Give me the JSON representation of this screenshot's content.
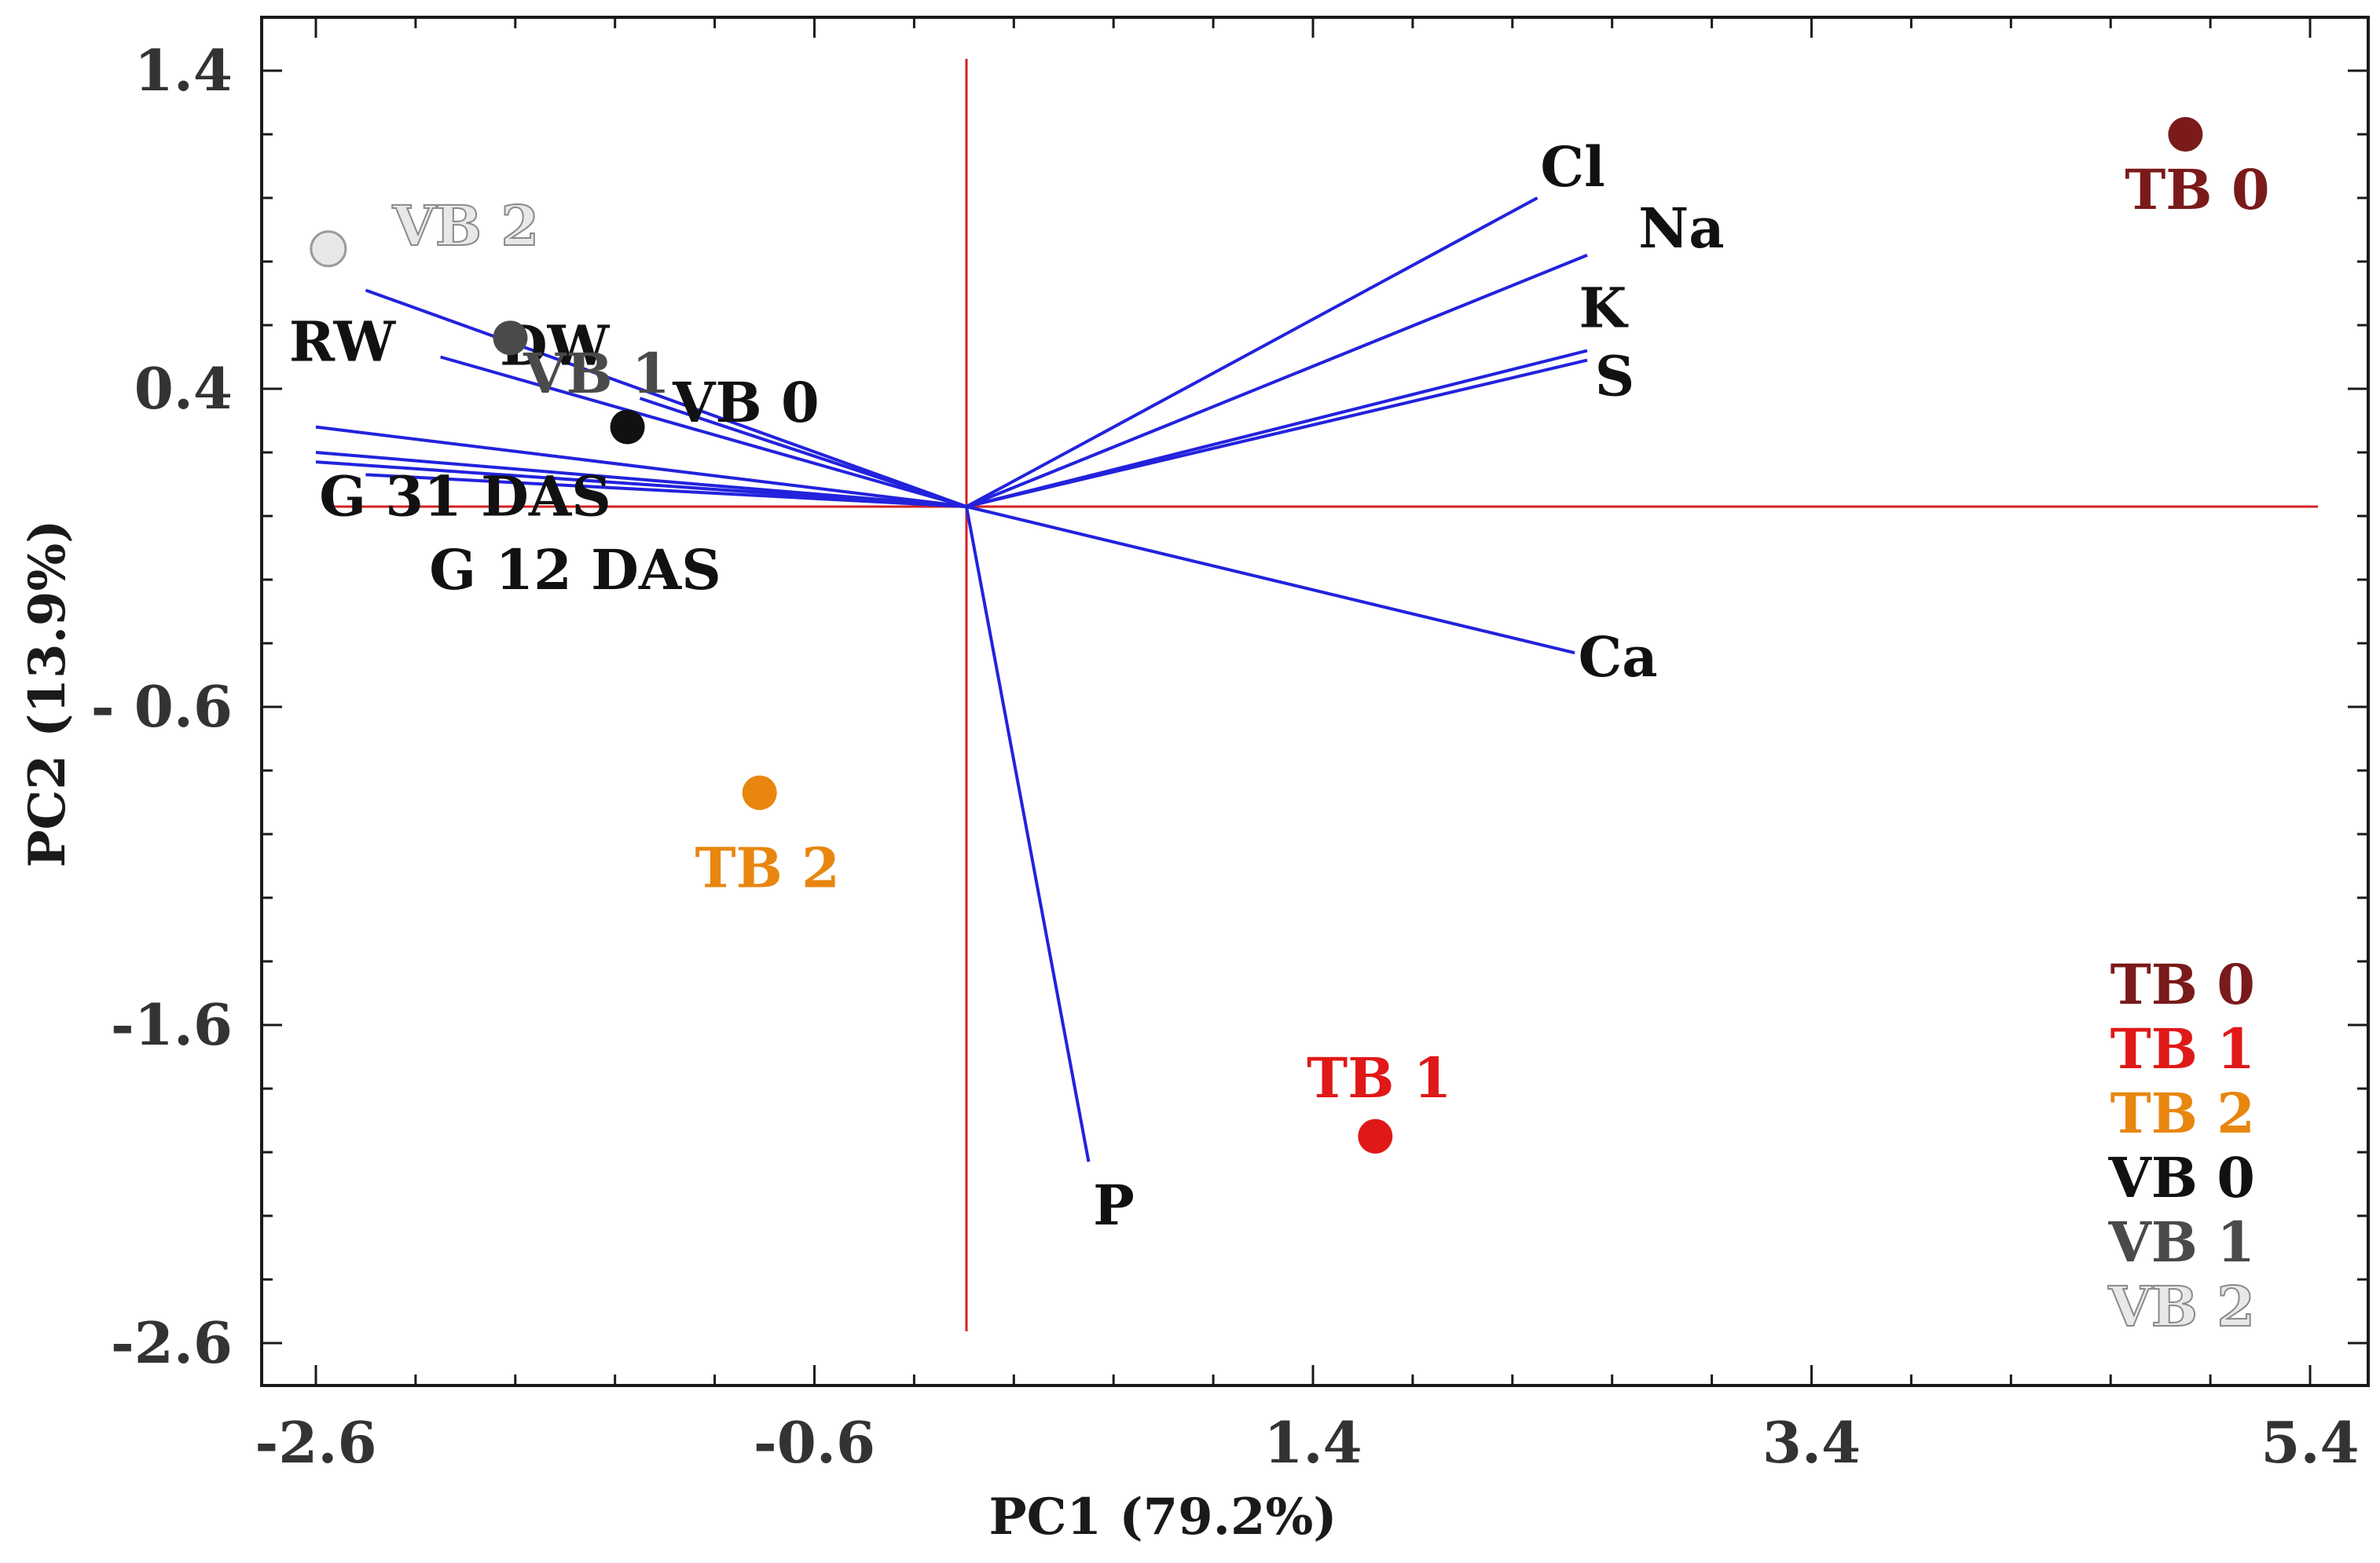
{
  "chart_data": {
    "type": "scatter",
    "subtype": "pca-biplot",
    "title": "",
    "xlabel": "PC1 (79.2%)",
    "ylabel": "PC2 (13.9%)",
    "xlim": [
      -2.6,
      5.4
    ],
    "ylim": [
      -2.6,
      1.4
    ],
    "xticks": [
      -2.6,
      -0.6,
      1.4,
      3.4,
      5.4
    ],
    "xtick_labels": [
      "-2.6",
      "-0.6",
      "1.4",
      "3.4",
      "5.4"
    ],
    "yticks": [
      -2.6,
      -1.6,
      -0.6,
      0.4,
      1.4
    ],
    "ytick_labels": [
      "-2.6",
      "-1.6",
      "- 0.6",
      "0.4",
      "1.4"
    ],
    "grid": false,
    "axes_color": "#d42020",
    "loading_color": "#2222dd",
    "legend_position": "bottom-right",
    "legend": [
      {
        "label": "TB 0",
        "color": "#7a1a1a"
      },
      {
        "label": "TB 1",
        "color": "#e01818"
      },
      {
        "label": "TB 2",
        "color": "#e8860f"
      },
      {
        "label": "VB 0",
        "color": "#111111"
      },
      {
        "label": "VB 1",
        "color": "#4a4a4a"
      },
      {
        "label": "VB 2",
        "color": "#e8e8e8",
        "outlined": true
      }
    ],
    "scores": [
      {
        "label": "TB 0",
        "x": 4.9,
        "y": 1.2,
        "color": "#7a1a1a"
      },
      {
        "label": "TB 1",
        "x": 1.65,
        "y": -1.95,
        "color": "#e01818"
      },
      {
        "label": "TB 2",
        "x": -0.82,
        "y": -0.87,
        "color": "#e8860f"
      },
      {
        "label": "VB 0",
        "x": -1.35,
        "y": 0.28,
        "color": "#111111"
      },
      {
        "label": "VB 1",
        "x": -1.82,
        "y": 0.56,
        "color": "#4a4a4a"
      },
      {
        "label": "VB 2",
        "x": -2.55,
        "y": 0.84,
        "color": "#e8e8e8"
      }
    ],
    "loadings": [
      {
        "label": "Cl",
        "x": 2.3,
        "y": 1.0
      },
      {
        "label": "Na",
        "x": 2.5,
        "y": 0.82
      },
      {
        "label": "K",
        "x": 2.5,
        "y": 0.52
      },
      {
        "label": "S",
        "x": 2.5,
        "y": 0.49
      },
      {
        "label": "Ca",
        "x": 2.45,
        "y": -0.43
      },
      {
        "label": "P",
        "x": 0.5,
        "y": -2.03
      },
      {
        "label": "RW",
        "x": -2.4,
        "y": 0.71
      },
      {
        "label": "DW",
        "x": -2.1,
        "y": 0.5
      },
      {
        "label": "VB 0",
        "x": -1.3,
        "y": 0.37
      },
      {
        "label": "G 31 DAS",
        "x": -2.6,
        "y": 0.28
      },
      {
        "label": "G 12 DAS",
        "x": -2.6,
        "y": 0.17
      }
    ],
    "extra_unlabeled_loadings": [
      {
        "x": -2.6,
        "y": 0.2
      },
      {
        "x": -2.4,
        "y": 0.13
      }
    ]
  }
}
